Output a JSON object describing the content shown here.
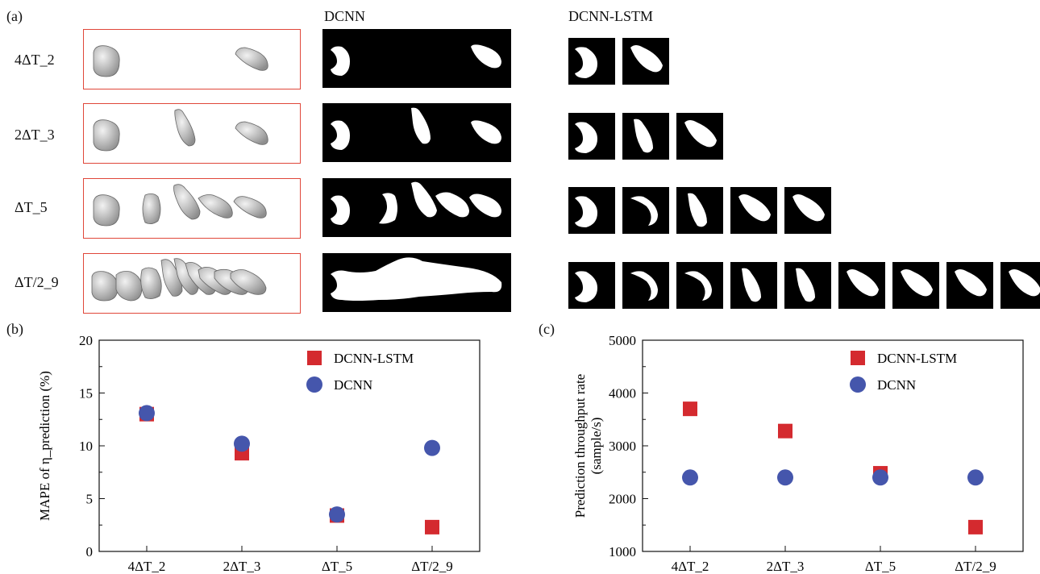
{
  "panel_a": {
    "letter": "(a)",
    "dcnn_title": "DCNN",
    "lstm_title": "DCNN-LSTM",
    "rows": [
      {
        "label": "4ΔT_2",
        "frames": 2
      },
      {
        "label": "2ΔT_3",
        "frames": 3
      },
      {
        "label": "ΔT_5",
        "frames": 5
      },
      {
        "label": "ΔT/2_9",
        "frames": 9
      }
    ]
  },
  "panel_b": {
    "letter": "(b)"
  },
  "panel_c": {
    "letter": "(c)"
  },
  "colors": {
    "red": "#d42a2f",
    "blue": "#4556ac",
    "frame": "#e0473a"
  },
  "chart_data": [
    {
      "type": "scatter",
      "title": "",
      "xlabel": "",
      "ylabel": "MAPE of η_prediction (%)",
      "categories": [
        "4ΔT_2",
        "2ΔT_3",
        "ΔT_5",
        "ΔT/2_9"
      ],
      "ylim": [
        0,
        20
      ],
      "yticks": [
        0,
        5,
        10,
        15,
        20
      ],
      "legend_position": "top-right",
      "series": [
        {
          "name": "DCNN-LSTM",
          "marker": "square",
          "values": [
            13.0,
            9.3,
            3.4,
            2.3
          ]
        },
        {
          "name": "DCNN",
          "marker": "circle",
          "values": [
            13.1,
            10.2,
            3.5,
            9.8
          ]
        }
      ]
    },
    {
      "type": "scatter",
      "title": "",
      "xlabel": "",
      "ylabel": "Prediction throughput rate (sample/s)",
      "ylabel_lines": [
        "Prediction throughput rate",
        "(sample/s)"
      ],
      "categories": [
        "4ΔT_2",
        "2ΔT_3",
        "ΔT_5",
        "ΔT/2_9"
      ],
      "ylim": [
        1000,
        5000
      ],
      "yticks": [
        1000,
        2000,
        3000,
        4000,
        5000
      ],
      "legend_position": "top-right",
      "series": [
        {
          "name": "DCNN-LSTM",
          "marker": "square",
          "values": [
            3700,
            3280,
            2480,
            1460
          ]
        },
        {
          "name": "DCNN",
          "marker": "circle",
          "values": [
            2400,
            2400,
            2400,
            2400
          ]
        }
      ]
    }
  ]
}
